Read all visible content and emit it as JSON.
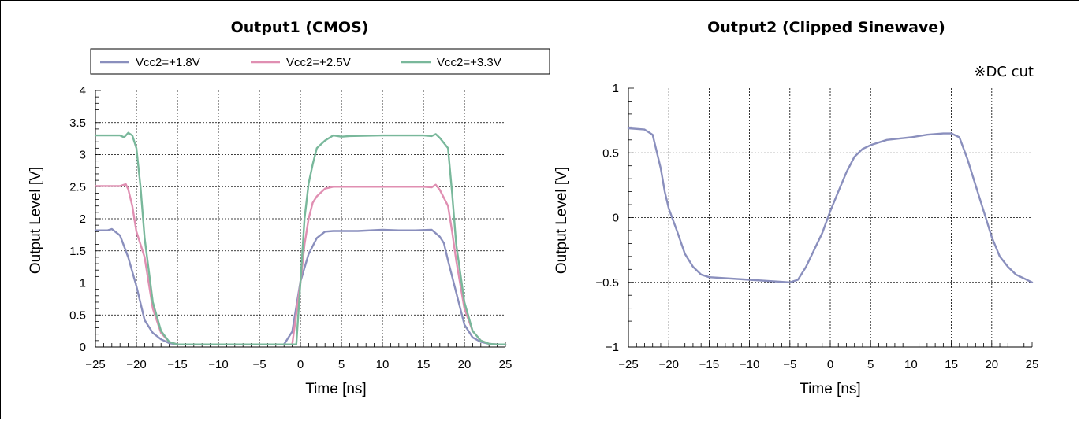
{
  "chart_data": [
    {
      "type": "line",
      "title": "Output1 (CMOS)",
      "xlabel": "Time [ns]",
      "ylabel": "Output Level [V]",
      "xlim": [
        -25,
        25
      ],
      "ylim": [
        0,
        4
      ],
      "xticks": [
        -25,
        -20,
        -15,
        -10,
        -5,
        0,
        5,
        10,
        15,
        20,
        25
      ],
      "yticks": [
        0,
        0.5,
        1,
        1.5,
        2,
        2.5,
        3,
        3.5,
        4
      ],
      "xtick_labels": [
        "−25",
        "−20",
        "−15",
        "−10",
        "−5",
        "0",
        "5",
        "10",
        "15",
        "20",
        "25"
      ],
      "ytick_labels": [
        "0",
        "0.5",
        "1",
        "1.5",
        "2",
        "2.5",
        "3",
        "3.5",
        "4"
      ],
      "grid": true,
      "legend": "top",
      "series": [
        {
          "name": "Vcc2=+1.8V",
          "color": "#8a8fbd",
          "x": [
            -25,
            -23.5,
            -23,
            -22,
            -21,
            -20,
            -19,
            -18,
            -17,
            -16,
            -15,
            -14,
            -10,
            -5,
            -2,
            -1,
            0,
            1,
            2,
            3,
            4,
            5,
            7,
            10,
            12,
            14,
            16,
            17,
            17.5,
            18,
            19,
            20,
            21,
            22,
            23,
            24,
            25
          ],
          "y": [
            1.82,
            1.82,
            1.84,
            1.74,
            1.4,
            0.95,
            0.42,
            0.22,
            0.12,
            0.06,
            0.04,
            0.04,
            0.04,
            0.04,
            0.04,
            0.24,
            1.02,
            1.45,
            1.7,
            1.8,
            1.81,
            1.81,
            1.81,
            1.83,
            1.82,
            1.82,
            1.83,
            1.72,
            1.62,
            1.35,
            0.85,
            0.35,
            0.15,
            0.08,
            0.05,
            0.04,
            0.04
          ]
        },
        {
          "name": "Vcc2=+2.5V",
          "color": "#e08fb2",
          "x": [
            -25,
            -22,
            -21.3,
            -21,
            -20.5,
            -20,
            -19,
            -18,
            -17,
            -16,
            -15,
            -14,
            -10,
            -5,
            -2,
            -1,
            0,
            0.5,
            1,
            1.5,
            2,
            3,
            4,
            5,
            10,
            15,
            16,
            16.5,
            17,
            18,
            18.5,
            19,
            20,
            21,
            22,
            23,
            24,
            25
          ],
          "y": [
            2.51,
            2.51,
            2.54,
            2.46,
            2.2,
            1.8,
            1.4,
            0.6,
            0.22,
            0.08,
            0.04,
            0.04,
            0.04,
            0.04,
            0.04,
            0.04,
            1.0,
            1.6,
            2.0,
            2.25,
            2.35,
            2.47,
            2.5,
            2.5,
            2.5,
            2.5,
            2.49,
            2.53,
            2.45,
            2.2,
            1.8,
            1.35,
            0.6,
            0.25,
            0.1,
            0.05,
            0.04,
            0.04
          ]
        },
        {
          "name": "Vcc2=+3.3V",
          "color": "#79b89b",
          "x": [
            -25,
            -22,
            -21.5,
            -21,
            -20.5,
            -20,
            -19.5,
            -19,
            -18,
            -17,
            -16,
            -15,
            -14,
            -10,
            -5,
            -2,
            -1,
            -0.5,
            0,
            0.5,
            1,
            1.5,
            2,
            3,
            4,
            5,
            6,
            10,
            15,
            16,
            16.5,
            17,
            18,
            18.5,
            19,
            20,
            21,
            22,
            23,
            24,
            25
          ],
          "y": [
            3.3,
            3.3,
            3.27,
            3.34,
            3.3,
            3.1,
            2.5,
            1.7,
            0.7,
            0.25,
            0.08,
            0.04,
            0.04,
            0.04,
            0.04,
            0.04,
            0.04,
            0.04,
            1.0,
            2.0,
            2.55,
            2.85,
            3.1,
            3.22,
            3.3,
            3.28,
            3.29,
            3.3,
            3.3,
            3.29,
            3.32,
            3.26,
            3.1,
            2.4,
            1.6,
            0.7,
            0.25,
            0.1,
            0.05,
            0.04,
            0.04
          ]
        }
      ]
    },
    {
      "type": "line",
      "title": "Output2 (Clipped Sinewave)",
      "xlabel": "Time [ns]",
      "ylabel": "Output Level [V]",
      "xlim": [
        -25,
        25
      ],
      "ylim": [
        -1,
        1
      ],
      "xticks": [
        -25,
        -20,
        -15,
        -10,
        -5,
        0,
        5,
        10,
        15,
        20,
        25
      ],
      "yticks": [
        -1,
        -0.5,
        0,
        0.5,
        1
      ],
      "xtick_labels": [
        "−25",
        "−20",
        "−15",
        "−10",
        "−5",
        "0",
        "5",
        "10",
        "15",
        "20",
        "25"
      ],
      "ytick_labels": [
        "−1",
        "−0.5",
        "0",
        "0.5",
        "1"
      ],
      "grid": true,
      "annotation": "※DC cut",
      "series": [
        {
          "color": "#8a8fbd",
          "x": [
            -25,
            -23,
            -22,
            -21,
            -20.5,
            -20,
            -19,
            -18,
            -17,
            -16,
            -15,
            -10,
            -5,
            -4,
            -3,
            -2,
            -1,
            0,
            1,
            2,
            3,
            4,
            5,
            7,
            10,
            12,
            14,
            15,
            16,
            17,
            18,
            19,
            20,
            21,
            22,
            23,
            24,
            25
          ],
          "y": [
            0.69,
            0.68,
            0.64,
            0.38,
            0.2,
            0.07,
            -0.1,
            -0.28,
            -0.38,
            -0.44,
            -0.46,
            -0.48,
            -0.5,
            -0.48,
            -0.38,
            -0.25,
            -0.12,
            0.05,
            0.2,
            0.35,
            0.47,
            0.53,
            0.56,
            0.6,
            0.62,
            0.64,
            0.65,
            0.65,
            0.62,
            0.45,
            0.25,
            0.05,
            -0.15,
            -0.3,
            -0.38,
            -0.44,
            -0.47,
            -0.5
          ]
        }
      ]
    }
  ]
}
